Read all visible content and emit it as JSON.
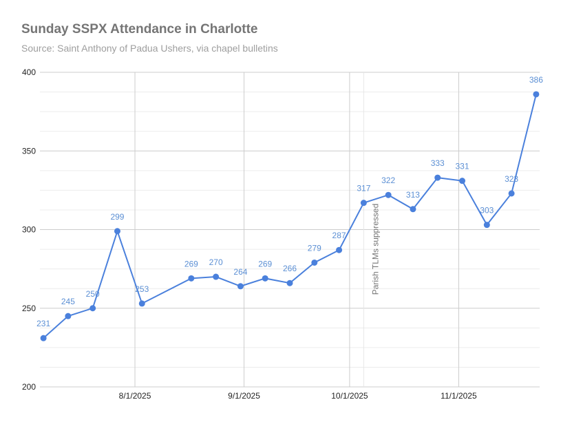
{
  "chart_data": {
    "type": "line",
    "title": "Sunday SSPX Attendance in Charlotte",
    "subtitle": "Source: Saint Anthony of Padua Ushers, via chapel bulletins",
    "xlabel": "",
    "ylabel": "",
    "ylim": [
      200,
      400
    ],
    "yticks": [
      "200",
      "250",
      "300",
      "350",
      "400"
    ],
    "xticks": [
      {
        "date": "2025-08-01",
        "label": "8/1/2025"
      },
      {
        "date": "2025-09-01",
        "label": "9/1/2025"
      },
      {
        "date": "2025-10-01",
        "label": "10/1/2025"
      },
      {
        "date": "2025-11-01",
        "label": "11/1/2025"
      }
    ],
    "xlim": [
      "2025-07-05",
      "2025-11-24"
    ],
    "grid": true,
    "color": "#4a80dc",
    "label_color": "#5b8fd4",
    "x": [
      "2025-07-06",
      "2025-07-13",
      "2025-07-20",
      "2025-07-27",
      "2025-08-03",
      "2025-08-17",
      "2025-08-24",
      "2025-08-31",
      "2025-09-07",
      "2025-09-14",
      "2025-09-21",
      "2025-09-28",
      "2025-10-05",
      "2025-10-12",
      "2025-10-19",
      "2025-10-26",
      "2025-11-02",
      "2025-11-09",
      "2025-11-16",
      "2025-11-23"
    ],
    "values": [
      231,
      245,
      250,
      299,
      253,
      269,
      270,
      264,
      269,
      266,
      279,
      287,
      317,
      322,
      313,
      333,
      331,
      303,
      323,
      386
    ],
    "annotation": {
      "date": "2025-10-05",
      "text": "Parish TLMs suppressed"
    }
  }
}
